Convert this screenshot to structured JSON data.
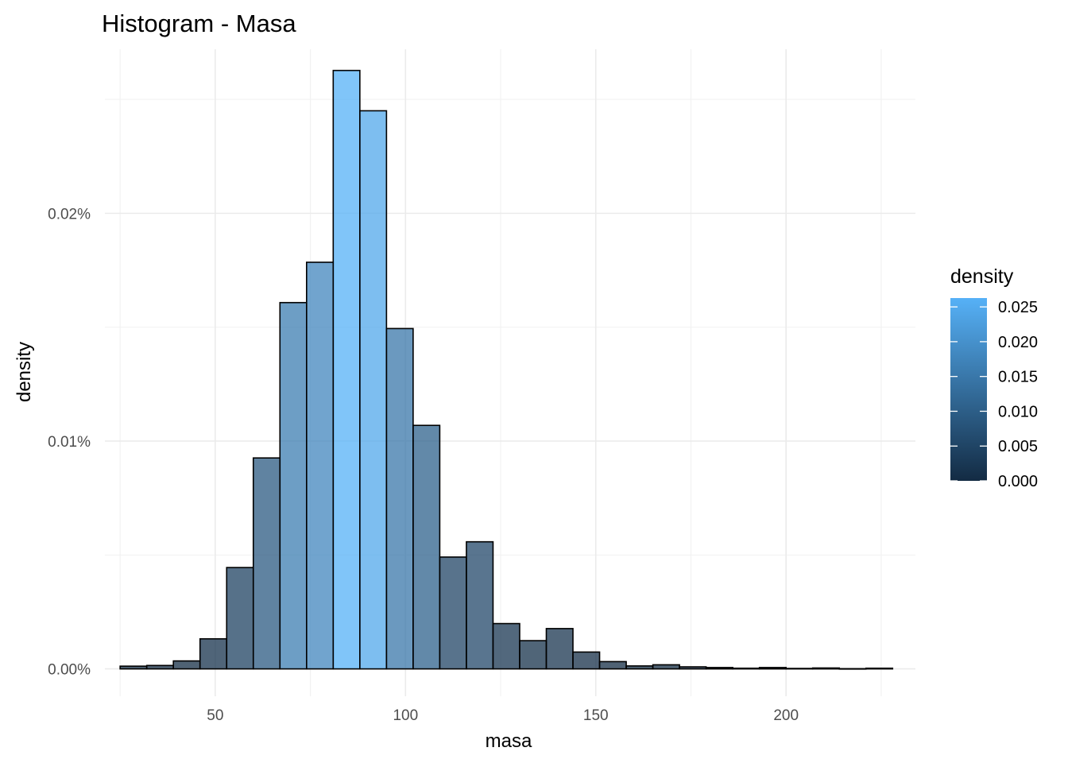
{
  "chart_data": {
    "type": "bar",
    "title": "Histogram - Masa",
    "xlabel": "masa",
    "ylabel": "density",
    "xlim": [
      21,
      234
    ],
    "ylim": [
      -0.0012,
      0.0272
    ],
    "x_ticks": [
      50,
      100,
      150,
      200
    ],
    "x_tick_labels": [
      "50",
      "100",
      "150",
      "200"
    ],
    "y_ticks": [
      0,
      0.01,
      0.02
    ],
    "y_tick_labels": [
      "0.00%",
      "0.01%",
      "0.02%"
    ],
    "grid": true,
    "bin_width": 7,
    "bins": [
      {
        "x0": 25,
        "x1": 32,
        "density": 0.00012
      },
      {
        "x0": 32,
        "x1": 39,
        "density": 0.00015
      },
      {
        "x0": 39,
        "x1": 46,
        "density": 0.00035
      },
      {
        "x0": 46,
        "x1": 53,
        "density": 0.00132
      },
      {
        "x0": 53,
        "x1": 60,
        "density": 0.00445
      },
      {
        "x0": 60,
        "x1": 67,
        "density": 0.00926
      },
      {
        "x0": 67,
        "x1": 74,
        "density": 0.01608
      },
      {
        "x0": 74,
        "x1": 81,
        "density": 0.01785
      },
      {
        "x0": 81,
        "x1": 88,
        "density": 0.02627
      },
      {
        "x0": 88,
        "x1": 95,
        "density": 0.0245
      },
      {
        "x0": 95,
        "x1": 102,
        "density": 0.01494
      },
      {
        "x0": 102,
        "x1": 109,
        "density": 0.01069
      },
      {
        "x0": 109,
        "x1": 116,
        "density": 0.00491
      },
      {
        "x0": 116,
        "x1": 123,
        "density": 0.00558
      },
      {
        "x0": 123,
        "x1": 130,
        "density": 0.00199
      },
      {
        "x0": 130,
        "x1": 137,
        "density": 0.00124
      },
      {
        "x0": 137,
        "x1": 144,
        "density": 0.00177
      },
      {
        "x0": 144,
        "x1": 151,
        "density": 0.00074
      },
      {
        "x0": 151,
        "x1": 158,
        "density": 0.00032
      },
      {
        "x0": 158,
        "x1": 165,
        "density": 0.00013
      },
      {
        "x0": 165,
        "x1": 172,
        "density": 0.00018
      },
      {
        "x0": 172,
        "x1": 179,
        "density": 9e-05
      },
      {
        "x0": 179,
        "x1": 186,
        "density": 6e-05
      },
      {
        "x0": 186,
        "x1": 193,
        "density": 3e-05
      },
      {
        "x0": 193,
        "x1": 200,
        "density": 6e-05
      },
      {
        "x0": 200,
        "x1": 207,
        "density": 2e-05
      },
      {
        "x0": 207,
        "x1": 214,
        "density": 4e-05
      },
      {
        "x0": 214,
        "x1": 221,
        "density": 1e-05
      },
      {
        "x0": 221,
        "x1": 228,
        "density": 3e-05
      }
    ],
    "fill_scale": {
      "low_color": "#132b43",
      "high_color": "#56b1f7",
      "fill_opacity": 0.75,
      "outline_color": "#000000"
    },
    "legend": {
      "title": "density",
      "position": "right",
      "breaks": [
        0.0,
        0.005,
        0.01,
        0.015,
        0.02,
        0.025
      ],
      "labels": [
        "0.000",
        "0.005",
        "0.010",
        "0.015",
        "0.020",
        "0.025"
      ]
    }
  }
}
